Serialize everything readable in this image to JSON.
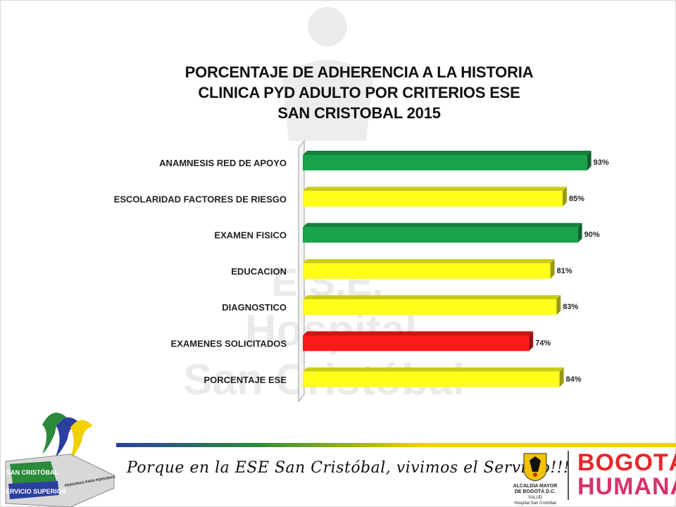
{
  "title": {
    "line1": "PORCENTAJE DE ADHERENCIA A LA HISTORIA",
    "line2": "CLINICA PYD ADULTO POR CRITERIOS ESE",
    "line3": "SAN CRISTOBAL 2015"
  },
  "watermark": {
    "line1": "E.S.E.",
    "line2": "Hospital",
    "line3": "San Cristóbal"
  },
  "chart_data": {
    "type": "bar",
    "orientation": "horizontal",
    "categories": [
      "ANAMNESIS RED DE APOYO",
      "ESCOLARIDAD FACTORES DE RIESGO",
      "EXAMEN FISICO",
      "EDUCACION",
      "DIAGNOSTICO",
      "EXAMENES SOLICITADOS",
      "PORCENTAJE ESE"
    ],
    "values": [
      93,
      85,
      90,
      81,
      83,
      74,
      84
    ],
    "value_labels": [
      "93%",
      "85%",
      "90%",
      "81%",
      "83%",
      "74%",
      "84%"
    ],
    "bar_colors": [
      "#1aa34a",
      "#ffff1a",
      "#1aa34a",
      "#ffff1a",
      "#ffff1a",
      "#ff1a1a",
      "#ffff1a"
    ],
    "xlim": [
      0,
      100
    ],
    "grid": false,
    "legend": "none"
  },
  "footer": {
    "logo_badge_line1": "SAN CRISTÓBAL",
    "logo_badge_line2": "SERVICIO SUPERIOR",
    "logo_badge_small": "PERSONAS PARA PERSONAS",
    "slogan": "Porque en la ESE San Cristóbal, vivimos el Servicio!!!",
    "alcaldia_line1": "ALCALDÍA MAYOR",
    "alcaldia_line2": "DE BOGOTÁ D.C.",
    "alcaldia_line3": "SALUD",
    "alcaldia_line4": "Hospital San Cristóbal",
    "bogota_line1": "BOGOTÁ",
    "bogota_line2": "HUMANA"
  },
  "colors": {
    "green": "#1aa34a",
    "yellow": "#ffff1a",
    "red": "#ff1a1a",
    "bogota_red": "#e8262b",
    "bogota_pink": "#d6336c"
  }
}
